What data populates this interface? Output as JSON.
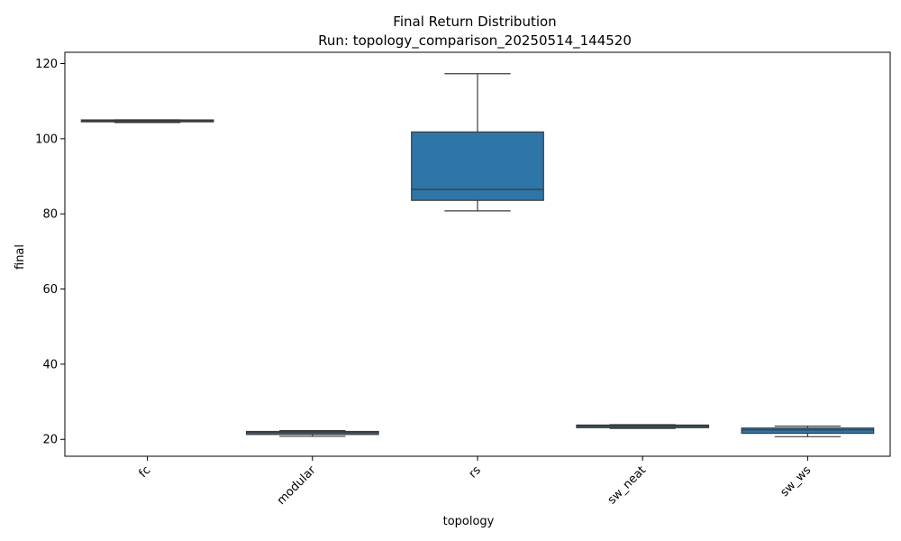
{
  "chart_data": {
    "type": "box",
    "title": "Final Return Distribution",
    "subtitle": "Run: topology_comparison_20250514_144520",
    "xlabel": "topology",
    "ylabel": "final",
    "ylim": [
      15.5,
      123
    ],
    "yticks": [
      20,
      40,
      60,
      80,
      100,
      120
    ],
    "grid": false,
    "box_color": "#2e75a8",
    "line_color": "#3b3b3b",
    "categories": [
      "fc",
      "modular",
      "rs",
      "sw_neat",
      "sw_ws"
    ],
    "boxes": [
      {
        "category": "fc",
        "min": 104.3,
        "q1": 104.5,
        "median": 104.8,
        "q3": 105.0,
        "max": 105.0
      },
      {
        "category": "modular",
        "min": 20.8,
        "q1": 21.3,
        "median": 21.8,
        "q3": 22.1,
        "max": 22.3
      },
      {
        "category": "rs",
        "min": 80.8,
        "q1": 83.6,
        "median": 86.5,
        "q3": 101.8,
        "max": 117.3
      },
      {
        "category": "sw_neat",
        "min": 22.9,
        "q1": 23.1,
        "median": 23.5,
        "q3": 23.8,
        "max": 23.9
      },
      {
        "category": "sw_ws",
        "min": 20.7,
        "q1": 21.6,
        "median": 22.5,
        "q3": 23.0,
        "max": 23.5
      }
    ]
  }
}
